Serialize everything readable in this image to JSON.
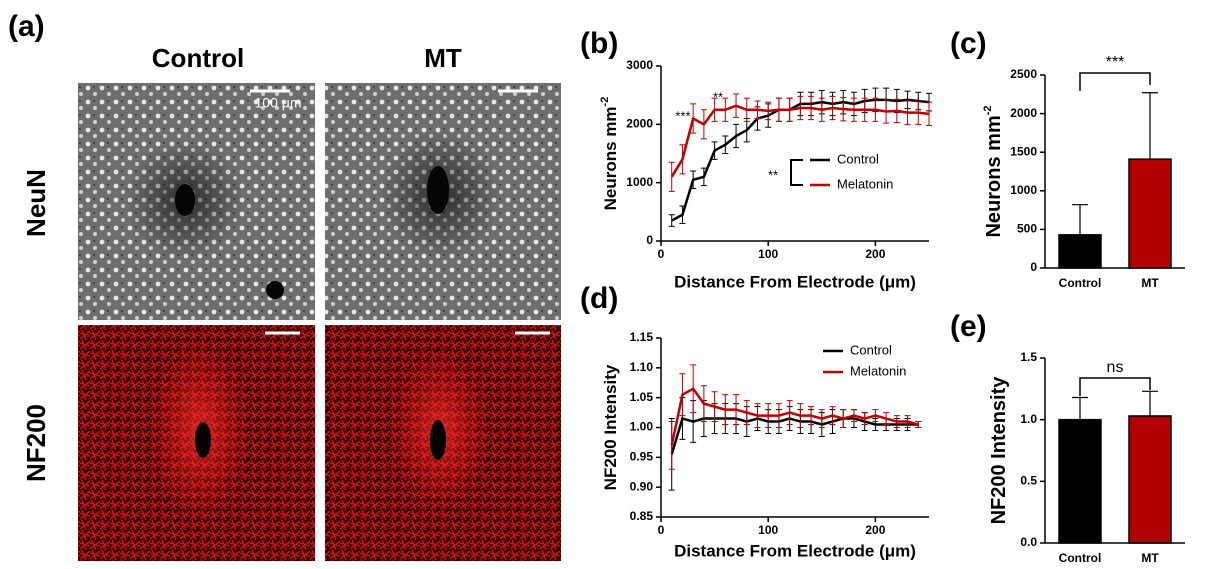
{
  "figure_a": {
    "panel_label": "(a)",
    "columns": [
      "Control",
      "MT"
    ],
    "rows": [
      "NeuN",
      "NF200"
    ],
    "scale_bar": "100 μm"
  },
  "chart_data": [
    {
      "type": "line",
      "panel_label": "(b)",
      "y_label": "Neurons mm",
      "y_label_superscript": "-2",
      "x_label": "Distance From Electrode (μm)",
      "xlim": [
        0,
        250
      ],
      "xticks": [
        0,
        100,
        200
      ],
      "ylim": [
        0,
        3000
      ],
      "yticks": [
        0,
        1000,
        2000,
        3000
      ],
      "x": [
        10,
        20,
        30,
        40,
        50,
        60,
        70,
        80,
        90,
        100,
        110,
        120,
        130,
        140,
        150,
        160,
        170,
        180,
        190,
        200,
        210,
        220,
        230,
        240,
        250
      ],
      "series": [
        {
          "name": "Control",
          "color": "#000000",
          "values": [
            350,
            450,
            1050,
            1100,
            1550,
            1650,
            1800,
            1900,
            2100,
            2150,
            2250,
            2250,
            2350,
            2350,
            2380,
            2350,
            2380,
            2350,
            2400,
            2420,
            2420,
            2400,
            2420,
            2400,
            2380
          ],
          "errors": [
            100,
            150,
            150,
            150,
            150,
            150,
            200,
            200,
            200,
            200,
            200,
            200,
            200,
            200,
            200,
            200,
            200,
            200,
            200,
            200,
            200,
            200,
            150,
            150,
            150
          ]
        },
        {
          "name": "Melatonin",
          "color": "#c00000",
          "values": [
            1100,
            1400,
            2100,
            2000,
            2250,
            2250,
            2320,
            2250,
            2250,
            2230,
            2250,
            2250,
            2280,
            2280,
            2250,
            2280,
            2260,
            2250,
            2250,
            2250,
            2220,
            2230,
            2200,
            2200,
            2180
          ],
          "errors": [
            250,
            250,
            250,
            250,
            200,
            200,
            200,
            200,
            150,
            150,
            200,
            200,
            200,
            200,
            200,
            200,
            200,
            200,
            200,
            200,
            200,
            200,
            200,
            200,
            200
          ]
        }
      ],
      "annotations": [
        "***",
        "**",
        "**"
      ]
    },
    {
      "type": "bar",
      "panel_label": "(c)",
      "y_label": "Neurons mm",
      "y_label_superscript": "-2",
      "categories": [
        "Control",
        "MT"
      ],
      "values": [
        430,
        1410
      ],
      "errors": [
        390,
        860
      ],
      "colors": [
        "#000000",
        "#b00000"
      ],
      "ylim": [
        0,
        2500
      ],
      "yticks": [
        0,
        500,
        1000,
        1500,
        2000,
        2500
      ],
      "significance": "***"
    },
    {
      "type": "line",
      "panel_label": "(d)",
      "y_label": "NF200 Intensity",
      "x_label": "Distance From Electrode (μm)",
      "xlim": [
        0,
        250
      ],
      "xticks": [
        0,
        100,
        200
      ],
      "ylim": [
        0.85,
        1.15
      ],
      "yticks": [
        0.85,
        {
          "value": 0.9,
          "label": "0.90"
        },
        0.95,
        {
          "value": 1.0,
          "label": "1.00"
        },
        1.05,
        {
          "value": 1.1,
          "label": "1.10"
        },
        1.15
      ],
      "x": [
        10,
        20,
        30,
        40,
        50,
        60,
        70,
        80,
        90,
        100,
        110,
        120,
        130,
        140,
        150,
        160,
        170,
        180,
        190,
        200,
        210,
        220,
        230,
        240
      ],
      "series": [
        {
          "name": "Control",
          "color": "#000000",
          "values": [
            0.955,
            1.015,
            1.01,
            1.015,
            1.015,
            1.015,
            1.015,
            1.01,
            1.015,
            1.01,
            1.01,
            1.015,
            1.01,
            1.01,
            1.005,
            1.01,
            1.015,
            1.015,
            1.01,
            1.005,
            1.005,
            1.005,
            1.005,
            1.005
          ],
          "errors": [
            0.06,
            0.035,
            0.035,
            0.03,
            0.025,
            0.025,
            0.025,
            0.025,
            0.02,
            0.02,
            0.02,
            0.02,
            0.02,
            0.02,
            0.02,
            0.02,
            0.015,
            0.015,
            0.015,
            0.01,
            0.01,
            0.01,
            0.01,
            0.005
          ]
        },
        {
          "name": "Melatonin",
          "color": "#c00000",
          "values": [
            0.97,
            1.055,
            1.065,
            1.04,
            1.035,
            1.03,
            1.03,
            1.025,
            1.02,
            1.02,
            1.02,
            1.025,
            1.02,
            1.02,
            1.015,
            1.02,
            1.015,
            1.02,
            1.015,
            1.02,
            1.015,
            1.01,
            1.01,
            1.005
          ],
          "errors": [
            0.04,
            0.035,
            0.04,
            0.03,
            0.025,
            0.025,
            0.025,
            0.02,
            0.02,
            0.02,
            0.02,
            0.02,
            0.02,
            0.015,
            0.015,
            0.015,
            0.015,
            0.01,
            0.01,
            0.01,
            0.01,
            0.01,
            0.01,
            0.005
          ]
        }
      ]
    },
    {
      "type": "bar",
      "panel_label": "(e)",
      "y_label": "NF200 Intensity",
      "categories": [
        "Control",
        "MT"
      ],
      "values": [
        1.0,
        1.03
      ],
      "errors": [
        0.18,
        0.2
      ],
      "colors": [
        "#000000",
        "#b00000"
      ],
      "ylim": [
        0,
        1.5
      ],
      "yticks": [
        {
          "value": 0,
          "label": "0.0"
        },
        0.5,
        {
          "value": 1,
          "label": "1.0"
        },
        1.5
      ],
      "significance": "ns"
    }
  ]
}
